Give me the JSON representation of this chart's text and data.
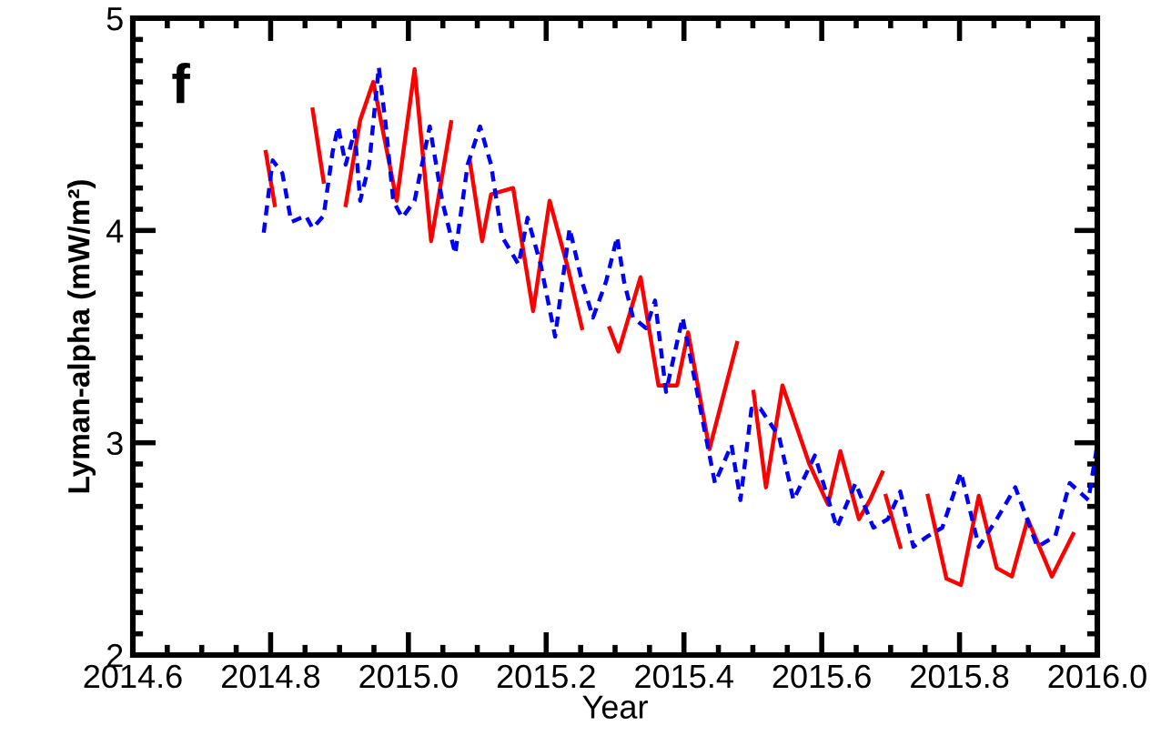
{
  "chart_data": {
    "type": "line",
    "xlabel": "Year",
    "ylabel": "Lyman-alpha (mW/m²)",
    "annotations": [
      "f"
    ],
    "xlim": [
      2014.6,
      2016.0
    ],
    "xticks": [
      {
        "value": 2014.6,
        "label": "2014.6"
      },
      {
        "value": 2014.8,
        "label": "2014.8"
      },
      {
        "value": 2015.0,
        "label": "2015.0"
      },
      {
        "value": 2015.2,
        "label": "2015.2"
      },
      {
        "value": 2015.4,
        "label": "2015.4"
      },
      {
        "value": 2015.6,
        "label": "2015.6"
      },
      {
        "value": 2015.8,
        "label": "2015.8"
      },
      {
        "value": 2016.0,
        "label": "2016.0"
      }
    ],
    "ylim": [
      2,
      5
    ],
    "yticks": [
      2,
      3,
      4,
      5
    ],
    "grid": false,
    "legend": false,
    "series": [
      {
        "color": "#ff0000",
        "line_style": "solid",
        "x": [
          2014.793,
          2014.806,
          2014.83,
          2014.861,
          2014.877,
          2014.89,
          2014.909,
          2014.93,
          2014.949,
          2014.983,
          2015.009,
          2015.033,
          2015.062,
          2015.075,
          2015.089,
          2015.107,
          2015.12,
          2015.152,
          2015.181,
          2015.205,
          2015.231,
          2015.252,
          2015.27,
          2015.292,
          2015.305,
          2015.337,
          2015.363,
          2015.39,
          2015.406,
          2015.437,
          2015.477,
          2015.49,
          2015.501,
          2015.519,
          2015.543,
          2015.582,
          2015.609,
          2015.627,
          2015.654,
          2015.67,
          2015.688,
          2015.69,
          2015.693,
          2015.714,
          2015.73,
          2015.754,
          2015.781,
          2015.802,
          2015.828,
          2015.854,
          2015.876,
          2015.899,
          2015.934,
          2015.965
        ],
        "values": [
          4.37,
          4.12,
          null,
          4.57,
          4.23,
          null,
          4.12,
          4.52,
          4.7,
          4.14,
          4.76,
          3.95,
          4.51,
          null,
          4.33,
          3.95,
          4.17,
          4.2,
          3.62,
          4.14,
          3.83,
          3.54,
          null,
          3.54,
          3.43,
          3.78,
          3.27,
          3.27,
          3.52,
          2.97,
          3.47,
          null,
          3.24,
          2.79,
          3.27,
          2.9,
          2.71,
          2.96,
          2.64,
          2.73,
          2.86,
          null,
          2.75,
          2.51,
          null,
          2.75,
          2.36,
          2.33,
          2.75,
          2.41,
          2.37,
          2.64,
          2.37,
          2.57
        ]
      },
      {
        "color": "#0000ff",
        "line_style": "dashed",
        "x": [
          2014.79,
          2014.803,
          2014.817,
          2014.83,
          2014.851,
          2014.861,
          2014.877,
          2014.89,
          2014.898,
          2014.909,
          2014.922,
          2014.93,
          2014.943,
          2014.957,
          2014.967,
          2014.978,
          2014.991,
          2015.009,
          2015.031,
          2015.049,
          2015.068,
          2015.086,
          2015.104,
          2015.12,
          2015.136,
          2015.16,
          2015.173,
          2015.192,
          2015.213,
          2015.234,
          2015.252,
          2015.268,
          2015.287,
          2015.303,
          2015.313,
          2015.326,
          2015.345,
          2015.358,
          2015.374,
          2015.398,
          2015.419,
          2015.445,
          2015.469,
          2015.482,
          2015.498,
          2015.511,
          2015.538,
          2015.559,
          2015.59,
          2015.622,
          2015.649,
          2015.675,
          2015.696,
          2015.714,
          2015.733,
          2015.754,
          2015.775,
          2015.802,
          2015.828,
          2015.854,
          2015.881,
          2015.913,
          2015.939,
          2015.96,
          2015.987,
          2016.0
        ],
        "values": [
          3.99,
          4.33,
          4.27,
          4.04,
          4.07,
          4.01,
          4.07,
          4.37,
          4.49,
          4.31,
          4.47,
          4.14,
          4.31,
          4.77,
          4.5,
          4.14,
          4.06,
          4.14,
          4.49,
          4.14,
          3.89,
          4.31,
          4.49,
          4.31,
          3.97,
          3.84,
          4.06,
          3.84,
          3.5,
          4.01,
          3.76,
          3.59,
          3.76,
          3.97,
          3.76,
          3.59,
          3.54,
          3.67,
          3.24,
          3.59,
          3.24,
          2.81,
          2.99,
          2.73,
          3.16,
          3.16,
          3.03,
          2.73,
          2.94,
          2.6,
          2.81,
          2.6,
          2.64,
          2.77,
          2.51,
          2.56,
          2.6,
          2.86,
          2.51,
          2.64,
          2.79,
          2.51,
          2.56,
          2.81,
          2.73,
          2.99
        ]
      }
    ]
  }
}
